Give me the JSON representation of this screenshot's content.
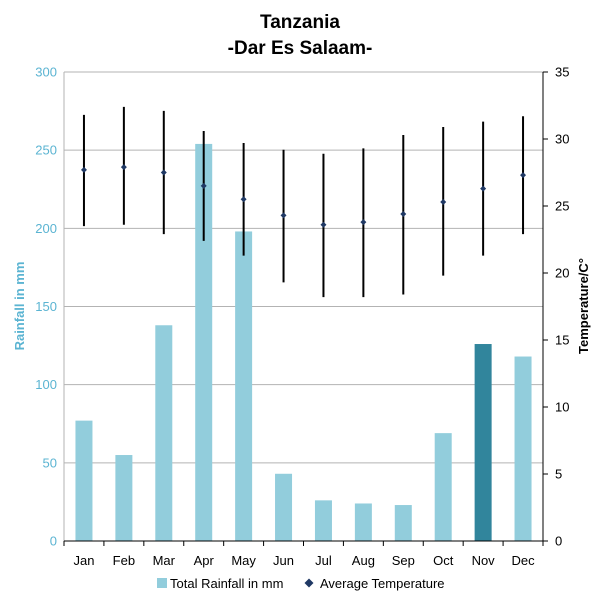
{
  "title_line1": "Tanzania",
  "title_line2": "-Dar Es Salaam-",
  "colors": {
    "bar": "#92cddc",
    "bar_highlight": "#31859c",
    "grid": "#b3b3b3",
    "temp": "#1f3864",
    "left_axis": "#5bb4d2",
    "right_axis": "#000000"
  },
  "chart_data": {
    "type": "bar",
    "title": "Tanzania -Dar Es Salaam-",
    "categories": [
      "Jan",
      "Feb",
      "Mar",
      "Apr",
      "May",
      "Jun",
      "Jul",
      "Aug",
      "Sep",
      "Oct",
      "Nov",
      "Dec"
    ],
    "ylabel": "Rainfall in mm",
    "y2label": "Temperature/C°",
    "ylim": [
      0,
      300
    ],
    "y2lim": [
      0,
      35
    ],
    "yticks": [
      "0",
      "50",
      "100",
      "150",
      "200",
      "250",
      "300"
    ],
    "y2ticks": [
      "0",
      "5",
      "10",
      "15",
      "20",
      "25",
      "30",
      "35"
    ],
    "highlight_index": 10,
    "series": [
      {
        "name": "Total Rainfall in mm",
        "kind": "bar",
        "axis": "left",
        "values": [
          77,
          55,
          138,
          254,
          198,
          43,
          26,
          24,
          23,
          69,
          126,
          118
        ]
      },
      {
        "name": "Average Temperature",
        "kind": "point-range",
        "axis": "right",
        "values": [
          27.7,
          27.9,
          27.5,
          26.5,
          25.5,
          24.3,
          23.6,
          23.8,
          24.4,
          25.3,
          26.3,
          27.3
        ],
        "max": [
          31.8,
          32.4,
          32.1,
          30.6,
          29.7,
          29.2,
          28.9,
          29.3,
          30.3,
          30.9,
          31.3,
          31.7
        ],
        "min": [
          23.5,
          23.6,
          22.9,
          22.4,
          21.3,
          19.3,
          18.2,
          18.2,
          18.4,
          19.8,
          21.3,
          22.9
        ]
      }
    ],
    "legend": [
      "Total Rainfall in mm",
      "Average Temperature"
    ],
    "legend_position": "bottom",
    "grid": true
  }
}
